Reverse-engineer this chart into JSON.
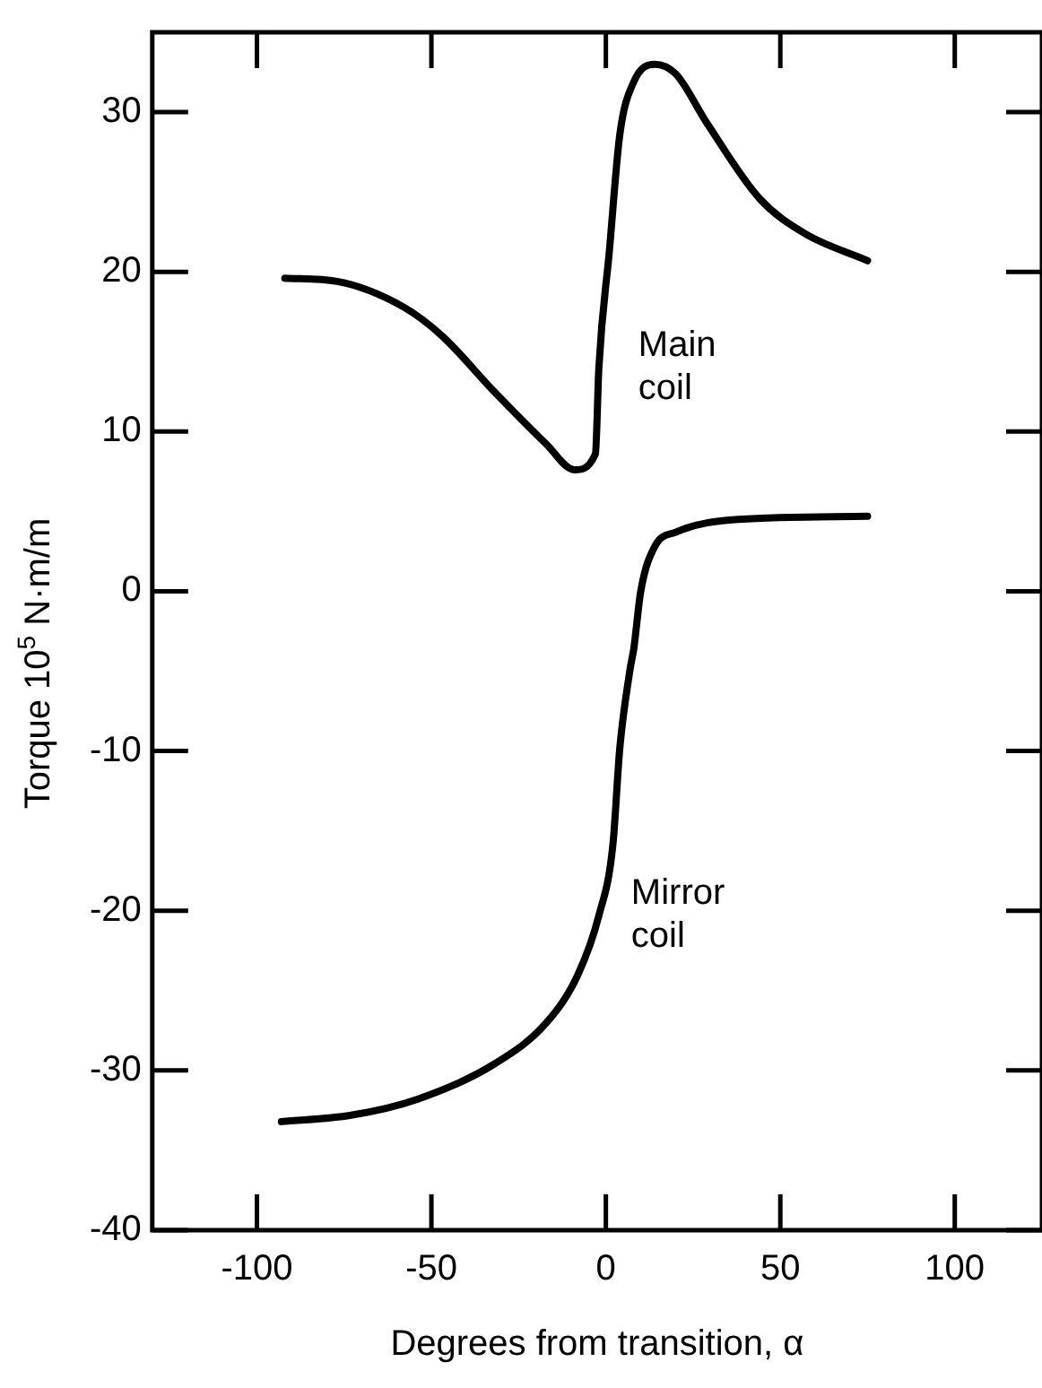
{
  "chart_data": {
    "type": "line",
    "xlabel": "Degrees from transition, α",
    "ylabel": "Torque 10$^{5}$ N·m/m",
    "xlim": [
      -130,
      125
    ],
    "xticks": [
      -100,
      -50,
      0,
      50,
      100
    ],
    "ylim": [
      -40,
      35
    ],
    "yticks": [
      -40,
      -30,
      -20,
      -10,
      0,
      10,
      20,
      30
    ],
    "grid": false,
    "legend": false,
    "marker": "none",
    "line_style": "solid",
    "series": [
      {
        "name": "Main coil",
        "color": "#000000",
        "x": [
          -92,
          -77,
          -58,
          -47,
          -32,
          -17,
          -9,
          -3,
          -2,
          1,
          4,
          8,
          14,
          20,
          29,
          44,
          57,
          75
        ],
        "values": [
          19.6,
          19.4,
          17.8,
          16,
          12.5,
          9.2,
          7.6,
          8.6,
          14,
          21.3,
          28.6,
          31.9,
          33,
          32.4,
          29.3,
          24.6,
          22.4,
          20.7
        ]
      },
      {
        "name": "Mirror coil",
        "color": "#000000",
        "x": [
          -93,
          -73,
          -54,
          -32,
          -17,
          -8,
          -2,
          2,
          4,
          7,
          8,
          10,
          14,
          20,
          38,
          75
        ],
        "values": [
          -33.2,
          -32.8,
          -31.8,
          -29.6,
          -27,
          -24,
          -20.3,
          -15.9,
          -9.8,
          -4.8,
          -3.6,
          0,
          2.8,
          3.7,
          4.5,
          4.7
        ]
      }
    ]
  }
}
